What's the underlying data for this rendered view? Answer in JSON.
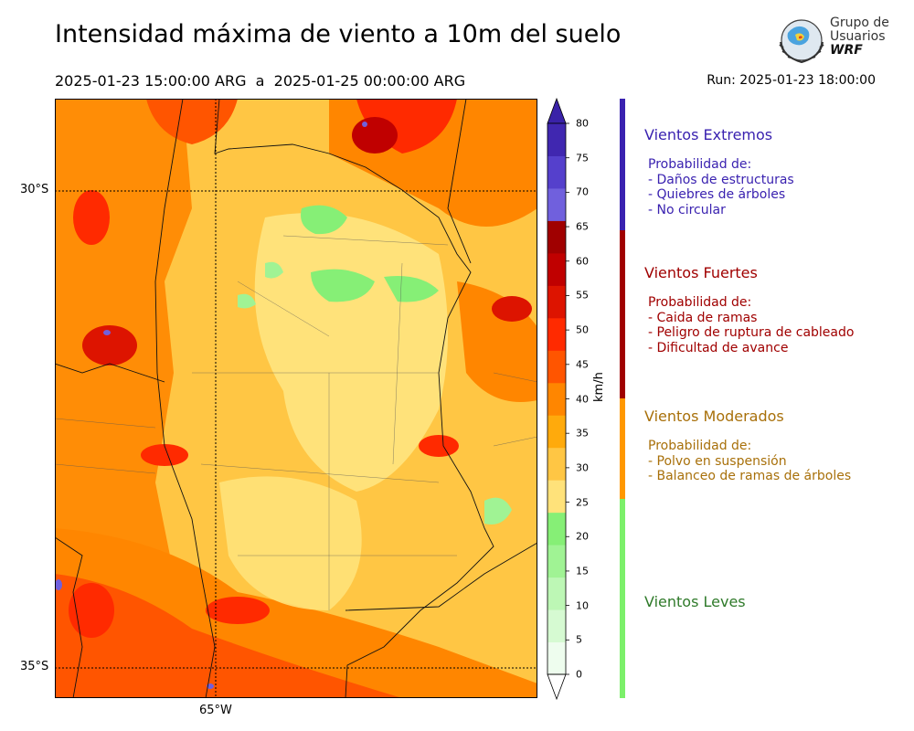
{
  "title": "Intensidad máxima de viento a 10m del suelo",
  "period": {
    "start": "2025-01-23 15:00:00 ARG",
    "separator": "a",
    "end": "2025-01-25 00:00:00 ARG"
  },
  "run": "Run: 2025-01-23 18:00:00",
  "logo": {
    "line1": "Grupo de",
    "line2": "Usuarios",
    "line3": "WRF"
  },
  "map": {
    "lat_labels": [
      "30°S",
      "35°S"
    ],
    "lon_labels": [
      "65°W"
    ]
  },
  "colorbar": {
    "unit": "km/h",
    "ticks": [
      "0",
      "5",
      "10",
      "15",
      "20",
      "25",
      "30",
      "35",
      "40",
      "45",
      "50",
      "55",
      "60",
      "65",
      "70",
      "75",
      "80"
    ],
    "colors": [
      "#eefdee",
      "#d6fad2",
      "#bdf7b5",
      "#a0f394",
      "#86ef76",
      "#ffe27a",
      "#ffc644",
      "#ffaa0c",
      "#ff8600",
      "#ff5500",
      "#ff2a00",
      "#dd1400",
      "#c00000",
      "#a00000",
      "#7060dd",
      "#5540cc",
      "#4027b0"
    ],
    "over_color": "#3a22a8",
    "under_color": "#ffffff"
  },
  "categories": [
    {
      "title": "Vientos Extremos",
      "color": "#3a22b0",
      "text_color": "#3a22b0",
      "desc": [
        "Probabilidad de:",
        "- Daños de estructuras",
        "- Quiebres de árboles",
        "- No circular"
      ]
    },
    {
      "title": "Vientos Fuertes",
      "color": "#a00000",
      "text_color": "#a00000",
      "desc": [
        "Probabilidad de:",
        "- Caida de ramas",
        "- Peligro de ruptura de cableado",
        "- Dificultad de avance"
      ]
    },
    {
      "title": "Vientos Moderados",
      "color": "#ff9800",
      "text_color": "#a8700a",
      "desc": [
        "Probabilidad de:",
        "- Polvo en suspensión",
        "- Balanceo de ramas de árboles"
      ]
    },
    {
      "title": "Vientos Leves",
      "color": "#7cf06a",
      "text_color": "#2f7a2a",
      "desc": []
    }
  ]
}
